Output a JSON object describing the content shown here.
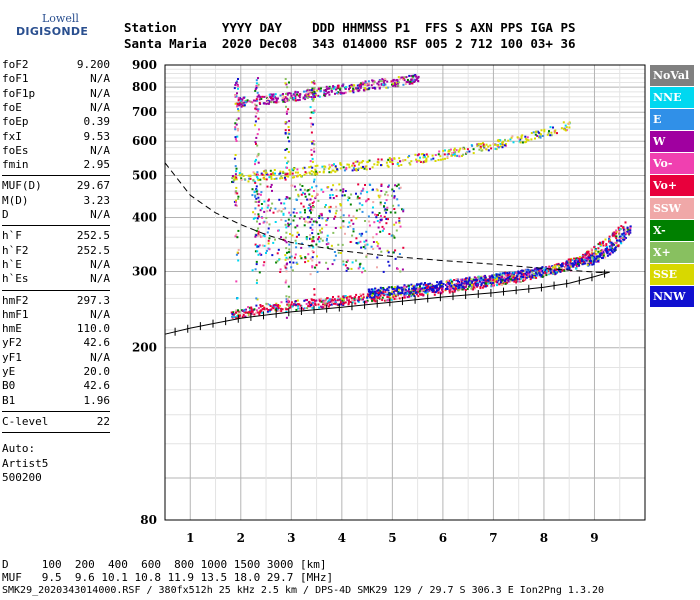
{
  "logo": {
    "line1": "Lowell",
    "line2": "DIGISONDE"
  },
  "header": {
    "line1": "Station      YYYY DAY    DDD HHMMSS P1  FFS S AXN PPS IGA PS",
    "line2": "Santa Maria  2020 Dec08  343 014000 RSF 005 2 712 100 03+ 36"
  },
  "params": {
    "group1": [
      {
        "label": "foF2",
        "value": "9.200"
      },
      {
        "label": "foF1",
        "value": "N/A"
      },
      {
        "label": "foF1p",
        "value": "N/A"
      },
      {
        "label": "foE",
        "value": "N/A"
      },
      {
        "label": "foEp",
        "value": "0.39"
      },
      {
        "label": "fxI",
        "value": "9.53"
      },
      {
        "label": "foEs",
        "value": "N/A"
      },
      {
        "label": "fmin",
        "value": "2.95"
      }
    ],
    "group2": [
      {
        "label": "MUF(D)",
        "value": "29.67"
      },
      {
        "label": "M(D)",
        "value": "3.23"
      },
      {
        "label": "D",
        "value": "N/A"
      }
    ],
    "group3": [
      {
        "label": "h`F",
        "value": "252.5"
      },
      {
        "label": "h`F2",
        "value": "252.5"
      },
      {
        "label": "h`E",
        "value": "N/A"
      },
      {
        "label": "h`Es",
        "value": "N/A"
      }
    ],
    "group4": [
      {
        "label": "hmF2",
        "value": "297.3"
      },
      {
        "label": "hmF1",
        "value": "N/A"
      },
      {
        "label": "hmE",
        "value": "110.0"
      },
      {
        "label": "yF2",
        "value": "42.6"
      },
      {
        "label": "yF1",
        "value": "N/A"
      },
      {
        "label": "yE",
        "value": "20.0"
      },
      {
        "label": "B0",
        "value": "42.6"
      },
      {
        "label": "B1",
        "value": "1.96"
      }
    ],
    "group5": [
      {
        "label": "C-level",
        "value": "22"
      }
    ],
    "extra": [
      "Auto:",
      "Artist5",
      "500200"
    ]
  },
  "legend": [
    {
      "label": "NoVal",
      "color": "#808080"
    },
    {
      "label": "NNE",
      "color": "#00d8f0"
    },
    {
      "label": "E",
      "color": "#3090e8"
    },
    {
      "label": "W",
      "color": "#a000a0"
    },
    {
      "label": "Vo-",
      "color": "#f040b0"
    },
    {
      "label": "Vo+",
      "color": "#e8003c"
    },
    {
      "label": "SSW",
      "color": "#f0a8a8"
    },
    {
      "label": "X-",
      "color": "#008000"
    },
    {
      "label": "X+",
      "color": "#88c060"
    },
    {
      "label": "SSE",
      "color": "#d8d800"
    },
    {
      "label": "NNW",
      "color": "#1010d0"
    }
  ],
  "footer": {
    "line1": "D     100  200  400  600  800 1000 1500 3000 [km]",
    "line2": "MUF   9.5  9.6 10.1 10.8 11.9 13.5 18.0 29.7 [MHz]",
    "file": "SMK29_2020343014000.RSF / 380fx512h 25 kHz 2.5 km / DPS-4D SMK29 129 / 29.7 S 306.3 E Ion2Png 1.3.20"
  },
  "chart_data": {
    "type": "scatter",
    "title": "",
    "xlabel": "",
    "ylabel": "",
    "xlim": [
      0.5,
      10.0
    ],
    "ylim": [
      80,
      900
    ],
    "y_scale": "log",
    "grid": true,
    "x_ticks": [
      1,
      2,
      3,
      4,
      5,
      6,
      7,
      8,
      9
    ],
    "y_ticks": [
      80,
      200,
      300,
      400,
      500,
      600,
      700,
      800,
      900
    ],
    "legend_placement": "right",
    "echo_traces": [
      {
        "name": "O-trace F2",
        "color": "#e8003c",
        "x": [
          1.8,
          2.5,
          3.5,
          4.5,
          5.5,
          6.5,
          7.5,
          8.2,
          8.8,
          9.2,
          9.6
        ],
        "y": [
          240,
          248,
          255,
          262,
          270,
          280,
          292,
          305,
          325,
          350,
          385
        ]
      },
      {
        "name": "X-trace F2",
        "color": "#1010d0",
        "x": [
          4.5,
          5.5,
          6.5,
          7.0,
          7.5,
          8.0,
          8.5,
          9.0,
          9.4,
          9.7
        ],
        "y": [
          268,
          276,
          285,
          290,
          296,
          302,
          310,
          322,
          345,
          380
        ]
      },
      {
        "name": "2nd hop",
        "color": "#d8d800",
        "x": [
          1.8,
          3.0,
          4.0,
          5.0,
          6.0,
          7.0,
          8.0,
          8.5
        ],
        "y": [
          495,
          510,
          525,
          540,
          560,
          590,
          630,
          660
        ]
      },
      {
        "name": "3rd hop",
        "color": "#a000a0",
        "x": [
          1.9,
          3.0,
          3.8,
          4.8,
          5.5
        ],
        "y": [
          740,
          765,
          790,
          820,
          840
        ]
      }
    ],
    "profile_line": {
      "style": "dashed",
      "x": [
        0.5,
        1.0,
        1.5,
        2.0,
        2.5,
        3.0,
        4.0,
        5.0,
        6.0,
        7.0,
        8.0,
        9.2
      ],
      "y": [
        535,
        450,
        410,
        385,
        365,
        350,
        335,
        325,
        318,
        312,
        305,
        298
      ]
    },
    "muf_curve": {
      "style": "solid-ticked",
      "x": [
        0.5,
        1.0,
        1.5,
        2.0,
        2.5,
        3.0,
        4.0,
        5.0,
        6.0,
        7.0,
        8.0,
        8.5,
        9.0,
        9.3
      ],
      "y": [
        215,
        222,
        228,
        234,
        238,
        242,
        248,
        255,
        262,
        268,
        276,
        282,
        292,
        299
      ]
    }
  }
}
